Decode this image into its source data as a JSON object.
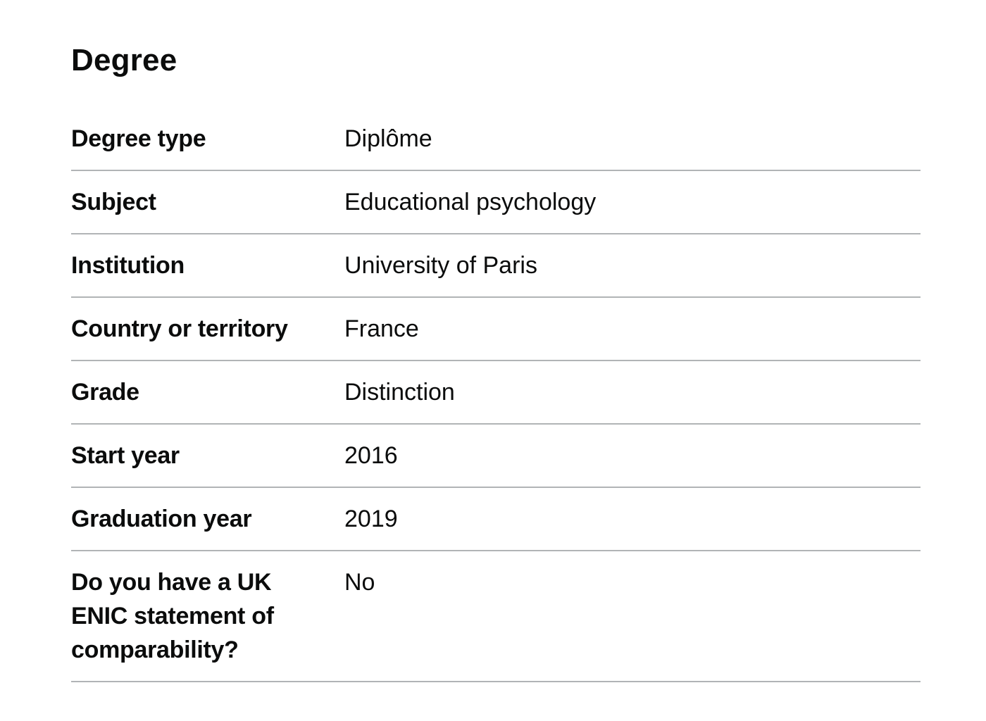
{
  "section": {
    "title": "Degree"
  },
  "rows": [
    {
      "key": "Degree type",
      "value": "Diplôme"
    },
    {
      "key": "Subject",
      "value": "Educational psychology"
    },
    {
      "key": "Institution",
      "value": "University of Paris"
    },
    {
      "key": "Country or territory",
      "value": "France"
    },
    {
      "key": "Grade",
      "value": "Distinction"
    },
    {
      "key": "Start year",
      "value": "2016"
    },
    {
      "key": "Graduation year",
      "value": "2019"
    },
    {
      "key": "Do you have a UK ENIC statement of comparability?",
      "value": "No"
    }
  ]
}
